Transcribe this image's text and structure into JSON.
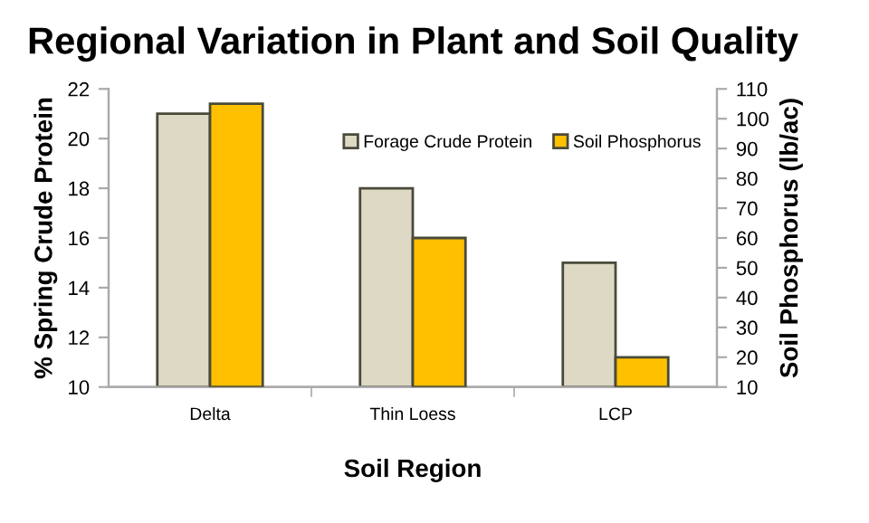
{
  "chart_data": {
    "type": "bar",
    "title": "Regional Variation in Plant and Soil Quality",
    "xlabel": "Soil Region",
    "ylabel": "% Spring Crude Protein",
    "y2label": "Soil Phosphorus (lb/ac)",
    "categories": [
      "Delta",
      "Thin Loess",
      "LCP"
    ],
    "series": [
      {
        "name": "Forage Crude Protein",
        "color": "#ddd9c4",
        "values": [
          21,
          18,
          15
        ]
      },
      {
        "name": "Soil Phosphorus",
        "color": "#ffc000",
        "axis": "y2",
        "values": [
          105,
          60,
          20
        ]
      }
    ],
    "ylim": [
      10,
      22
    ],
    "yticks": [
      10,
      12,
      14,
      16,
      18,
      20,
      22
    ],
    "y2lim": [
      10,
      110
    ],
    "y2ticks": [
      10,
      20,
      30,
      40,
      50,
      60,
      70,
      80,
      90,
      100,
      110
    ],
    "grid": false,
    "legend": "top right"
  }
}
